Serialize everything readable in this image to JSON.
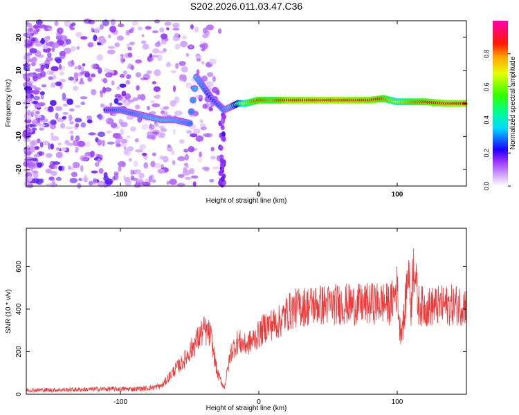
{
  "title": "S202.2026.011.03.47.C36",
  "colors": {
    "snr_line": "#ee3a3a",
    "frame": "#000000",
    "background": "#ffffff"
  },
  "chart_data": [
    {
      "type": "heatmap",
      "xlabel": "Height of straight line (km)",
      "ylabel": "Frequency (Hz)",
      "xlim": [
        -168,
        150
      ],
      "ylim": [
        -25,
        25
      ],
      "xticks": [
        -100,
        0,
        100
      ],
      "yticks": [
        -20,
        -10,
        0,
        10,
        20
      ],
      "colorbar": {
        "label": "Normalized spectral amplitude",
        "range": [
          0,
          1
        ],
        "ticks": [
          0.0,
          0.2,
          0.4,
          0.6,
          0.8
        ],
        "tick_labels": [
          "0.0",
          "0.2",
          "0.4",
          "0.6",
          "0.8"
        ]
      },
      "ridge": [
        {
          "x": -110,
          "y": -2,
          "a": 0.25
        },
        {
          "x": -100,
          "y": -2,
          "a": 0.3
        },
        {
          "x": -90,
          "y": -3,
          "a": 0.3
        },
        {
          "x": -80,
          "y": -4,
          "a": 0.35
        },
        {
          "x": -70,
          "y": -5,
          "a": 0.4
        },
        {
          "x": -60,
          "y": -5,
          "a": 0.35
        },
        {
          "x": -50,
          "y": -6,
          "a": 0.3
        },
        {
          "x": -45,
          "y": 8,
          "a": 0.35
        },
        {
          "x": -40,
          "y": 5,
          "a": 0.3
        },
        {
          "x": -35,
          "y": 2,
          "a": 0.25
        },
        {
          "x": -25,
          "y": -2,
          "a": 0.3
        },
        {
          "x": -20,
          "y": -1,
          "a": 0.4
        },
        {
          "x": -15,
          "y": 0,
          "a": 0.55
        },
        {
          "x": -10,
          "y": 0,
          "a": 0.7
        },
        {
          "x": -5,
          "y": 0.5,
          "a": 0.8
        },
        {
          "x": 0,
          "y": 1,
          "a": 0.85
        },
        {
          "x": 10,
          "y": 1,
          "a": 0.8
        },
        {
          "x": 20,
          "y": 1,
          "a": 0.9
        },
        {
          "x": 40,
          "y": 1,
          "a": 0.92
        },
        {
          "x": 60,
          "y": 1,
          "a": 0.92
        },
        {
          "x": 80,
          "y": 1,
          "a": 0.9
        },
        {
          "x": 90,
          "y": 1.5,
          "a": 0.85
        },
        {
          "x": 100,
          "y": 0.5,
          "a": 0.7
        },
        {
          "x": 110,
          "y": 0.5,
          "a": 0.8
        },
        {
          "x": 120,
          "y": 0.5,
          "a": 0.85
        },
        {
          "x": 135,
          "y": 0,
          "a": 0.9
        },
        {
          "x": 150,
          "y": 0,
          "a": 0.9
        }
      ]
    },
    {
      "type": "line",
      "xlabel": "Height of straight line (km)",
      "ylabel": "SNR (10 * v/v)",
      "xlim": [
        -168,
        150
      ],
      "ylim": [
        0,
        780
      ],
      "xticks": [
        -100,
        0,
        100
      ],
      "yticks": [
        0,
        200,
        400,
        600
      ],
      "series": [
        {
          "name": "SNR",
          "x": [
            -168,
            -150,
            -130,
            -110,
            -90,
            -80,
            -70,
            -65,
            -60,
            -55,
            -50,
            -45,
            -40,
            -35,
            -30,
            -25,
            -20,
            -15,
            -10,
            -5,
            0,
            5,
            10,
            15,
            20,
            25,
            30,
            40,
            50,
            60,
            70,
            80,
            90,
            95,
            100,
            102,
            105,
            108,
            110,
            112,
            115,
            120,
            130,
            140,
            150
          ],
          "y": [
            20,
            20,
            22,
            25,
            25,
            28,
            40,
            80,
            120,
            150,
            200,
            250,
            300,
            280,
            100,
            30,
            200,
            250,
            230,
            250,
            280,
            320,
            330,
            340,
            380,
            400,
            410,
            420,
            420,
            425,
            420,
            425,
            430,
            420,
            500,
            300,
            350,
            600,
            400,
            650,
            420,
            410,
            415,
            420,
            420
          ]
        }
      ]
    }
  ]
}
